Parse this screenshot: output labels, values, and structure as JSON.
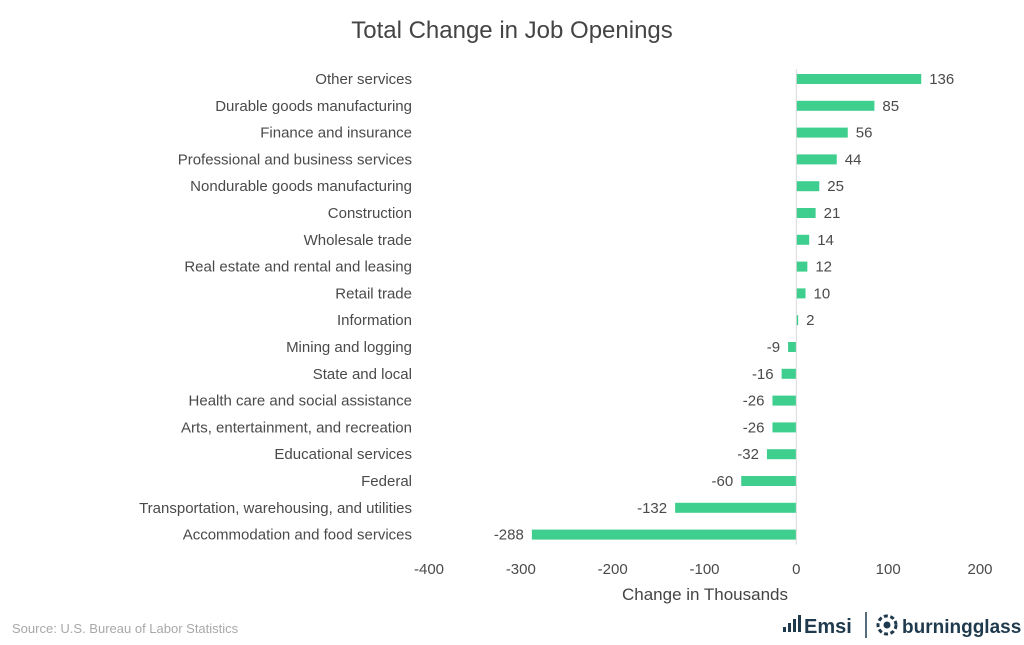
{
  "chart_data": {
    "type": "bar",
    "orientation": "horizontal",
    "title": "Total Change in Job Openings",
    "xlabel": "Change in Thousands",
    "ylabel": "",
    "xlim": [
      -400,
      200
    ],
    "xticks": [
      -400,
      -300,
      -200,
      -100,
      0,
      100,
      200
    ],
    "grid": false,
    "bar_color": "#3ecf8e",
    "categories": [
      "Other services",
      "Durable goods manufacturing",
      "Finance and insurance",
      "Professional and business services",
      "Nondurable goods manufacturing",
      "Construction",
      "Wholesale trade",
      "Real estate and rental and leasing",
      "Retail trade",
      "Information",
      "Mining and logging",
      "State and local",
      "Health care and social assistance",
      "Arts, entertainment, and recreation",
      "Educational services",
      "Federal",
      "Transportation, warehousing, and utilities",
      "Accommodation and food services"
    ],
    "values": [
      136,
      85,
      56,
      44,
      25,
      21,
      14,
      12,
      10,
      2,
      -9,
      -16,
      -26,
      -26,
      -32,
      -60,
      -132,
      -288
    ]
  },
  "footer": {
    "source": "Source:  U.S. Bureau of Labor Statistics",
    "logo_emsi": "Emsi",
    "logo_burningglass": "burningglass",
    "logo_emsi_icon": "bars-icon",
    "logo_burningglass_icon": "sun-icon",
    "logo_color": "#1f3a4d"
  }
}
